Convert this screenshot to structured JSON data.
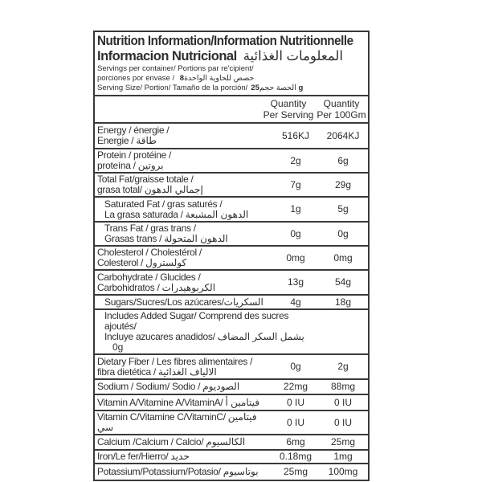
{
  "title_line1": "Nutrition Information/Information Nutritionnelle",
  "title_line2": "Informacion Nutricional",
  "title_arabic": "المعلومات الغذائية",
  "servings_label_1": "Servings per container/ Portions par re'cipient/",
  "servings_label_2": "porciones por envase / حصص للحاوية الواحدة",
  "servings_value": "8",
  "serving_size_label": "Serving Size/ Portion/ Tamaño de la porción/الحصة حجم",
  "serving_size_value": "25 g",
  "col1_header": [
    "Quantity",
    "Per Serving"
  ],
  "col2_header": [
    "Quantity",
    "Per 100Gm"
  ],
  "rows": [
    {
      "l1": "Energy / énergie /",
      "l2": "Energie / طاقة",
      "v1": "516KJ",
      "v2": "2064KJ"
    },
    {
      "l1": "Protein / protéine /",
      "l2": "proteína / بروتين",
      "v1": "2g",
      "v2": "6g"
    },
    {
      "l1": "Total Fat/graisse totale /",
      "l2": "grasa total/ إجمالي الدهون",
      "v1": "7g",
      "v2": "29g"
    },
    {
      "l1": "Saturated Fat / gras saturés /",
      "l2": "La grasa saturada / الدهون المشبعة",
      "v1": "1g",
      "v2": "5g",
      "indent": true
    },
    {
      "l1": "Trans Fat / gras trans /",
      "l2": "Grasas trans / الدهون المتحولة",
      "v1": "0g",
      "v2": "0g",
      "indent": true
    },
    {
      "l1": "Cholesterol / Cholestérol /",
      "l2": "Colesterol / كولسترول",
      "v1": "0mg",
      "v2": "0mg"
    },
    {
      "l1": "Carbohydrate / Glucides /",
      "l2": "Carbohidratos / الكربوهيدرات",
      "v1": "13g",
      "v2": "54g"
    },
    {
      "l1": "Sugars/Sucres/Los azúcares/السكريات",
      "l2": "",
      "v1": "4g",
      "v2": "18g",
      "indent": true
    },
    {
      "l1": "Includes Added Sugar/ Comprend des sucres ajoutés/",
      "l2": "Incluye azucares anadidos/ يشمل السكر المضاف",
      "v1": "0g",
      "v2": "",
      "indent": true
    },
    {
      "l1": "Dietary Fiber / Les fibres alimentaires /",
      "l2": "fibra dietética / الالياف الغذائية",
      "v1": "0g",
      "v2": "2g"
    },
    {
      "l1": "Sodium / Sodium/ Sodio / الصوديوم",
      "l2": "",
      "v1": "22mg",
      "v2": "88mg"
    },
    {
      "l1": "Vitamin A/Vitamine A/VitaminA/ فيتامين أ",
      "l2": "",
      "v1": "0 IU",
      "v2": "0 IU"
    },
    {
      "l1": "Vitamin C/Vitamine C/VitaminC/ فيتامين سي",
      "l2": "",
      "v1": "0 IU",
      "v2": "0 IU"
    },
    {
      "l1": "Calcium /Calcium / Calcio/ الكالسيوم",
      "l2": "",
      "v1": "6mg",
      "v2": "25mg"
    },
    {
      "l1": "Iron/Le fer/Hierro/ حديد",
      "l2": "",
      "v1": "0.18mg",
      "v2": "1mg"
    },
    {
      "l1": "Potassium/Potassium/Potasio/ بوتاسيوم",
      "l2": "",
      "v1": "25mg",
      "v2": "100mg"
    }
  ]
}
